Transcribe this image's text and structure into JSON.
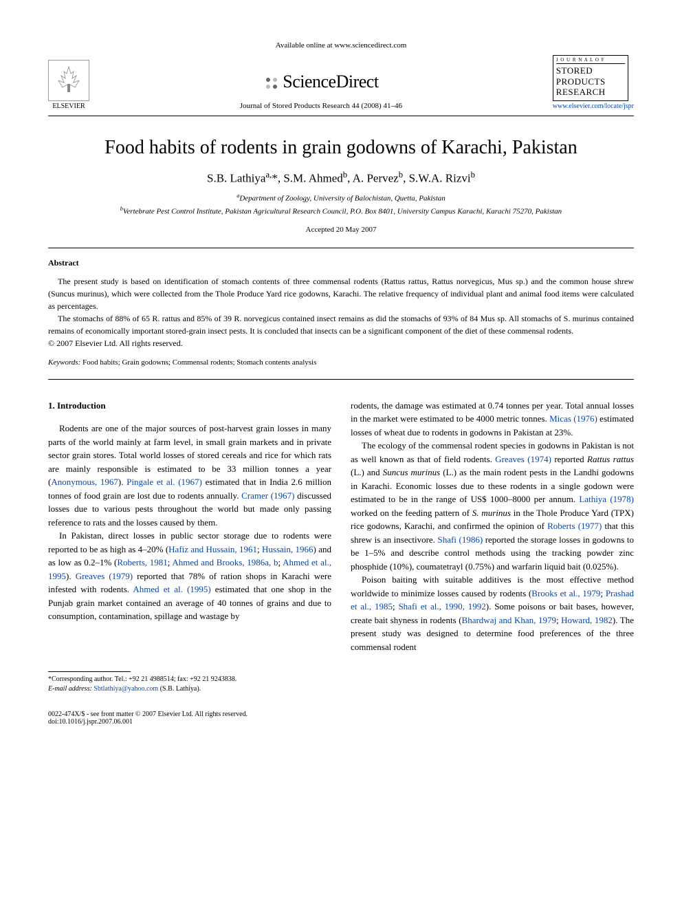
{
  "header": {
    "available_text": "Available online at www.sciencedirect.com",
    "sciencedirect": "ScienceDirect",
    "journal_ref": "Journal of Stored Products Research 44 (2008) 41–46",
    "elsevier_label": "ELSEVIER",
    "journal_cover_label": "J O U R N A L   O F",
    "journal_cover_title": "STORED PRODUCTS RESEARCH",
    "journal_link": "www.elsevier.com/locate/jspr"
  },
  "article": {
    "title": "Food habits of rodents in grain godowns of Karachi, Pakistan",
    "authors_html": "S.B. Lathiya<sup>a,</sup>*, S.M. Ahmed<sup>b</sup>, A. Pervez<sup>b</sup>, S.W.A. Rizvi<sup>b</sup>",
    "affiliation_a": "Department of Zoology, University of Balochistan, Quetta, Pakistan",
    "affiliation_b": "Vertebrate Pest Control Institute, Pakistan Agricultural Research Council, P.O. Box 8401, University Campus Karachi, Karachi 75270, Pakistan",
    "accepted": "Accepted 20 May 2007"
  },
  "abstract": {
    "heading": "Abstract",
    "p1": "The present study is based on identification of stomach contents of three commensal rodents (Rattus rattus, Rattus norvegicus, Mus sp.) and the common house shrew (Suncus murinus), which were collected from the Thole Produce Yard rice godowns, Karachi. The relative frequency of individual plant and animal food items were calculated as percentages.",
    "p2": "The stomachs of 88% of 65 R. rattus and 85% of 39 R. norvegicus contained insect remains as did the stomachs of 93% of 84 Mus sp. All stomachs of S. murinus contained remains of economically important stored-grain insect pests. It is concluded that insects can be a significant component of the diet of these commensal rodents.",
    "copyright": "© 2007 Elsevier Ltd. All rights reserved.",
    "keywords_label": "Keywords:",
    "keywords": "Food habits; Grain godowns; Commensal rodents; Stomach contents analysis"
  },
  "body": {
    "intro_heading": "1. Introduction",
    "col1_p1_a": "Rodents are one of the major sources of post-harvest grain losses in many parts of the world mainly at farm level, in small grain markets and in private sector grain stores. Total world losses of stored cereals and rice for which rats are mainly responsible is estimated to be 33 million tonnes a year (",
    "col1_p1_ref1": "Anonymous, 1967",
    "col1_p1_b": "). ",
    "col1_p1_ref2": "Pingale et al. (1967)",
    "col1_p1_c": " estimated that in India 2.6 million tonnes of food grain are lost due to rodents annually. ",
    "col1_p1_ref3": "Cramer (1967)",
    "col1_p1_d": " discussed losses due to various pests throughout the world but made only passing reference to rats and the losses caused by them.",
    "col1_p2_a": "In Pakistan, direct losses in public sector storage due to rodents were reported to be as high as 4–20% (",
    "col1_p2_ref1": "Hafiz and Hussain, 1961",
    "col1_p2_b": "; ",
    "col1_p2_ref2": "Hussain, 1966",
    "col1_p2_c": ") and as low as 0.2–1% (",
    "col1_p2_ref3": "Roberts, 1981",
    "col1_p2_d": "; ",
    "col1_p2_ref4": "Ahmed and Brooks, 1986a, b",
    "col1_p2_e": "; ",
    "col1_p2_ref5": "Ahmed et al., 1995",
    "col1_p2_f": "). ",
    "col1_p2_ref6": "Greaves (1979)",
    "col1_p2_g": " reported that 78% of ration shops in Karachi were infested with rodents. ",
    "col1_p2_ref7": "Ahmed et al. (1995)",
    "col1_p2_h": " estimated that one shop in the Punjab grain market contained an average of 40 tonnes of grains and due to consumption, contamination, spillage and wastage by",
    "col2_p1_a": "rodents, the damage was estimated at 0.74 tonnes per year. Total annual losses in the market were estimated to be 4000 metric tonnes. ",
    "col2_p1_ref1": "Micas (1976)",
    "col2_p1_b": " estimated losses of wheat due to rodents in godowns in Pakistan at 23%.",
    "col2_p2_a": "The ecology of the commensal rodent species in godowns in Pakistan is not as well known as that of field rodents. ",
    "col2_p2_ref1": "Greaves (1974)",
    "col2_p2_b": " reported ",
    "col2_p2_it1": "Rattus rattus",
    "col2_p2_c": " (L.) and ",
    "col2_p2_it2": "Suncus murinus",
    "col2_p2_d": " (L.) as the main rodent pests in the Landhi godowns in Karachi. Economic losses due to these rodents in a single godown were estimated to be in the range of US$ 1000–8000 per annum. ",
    "col2_p2_ref2": "Lathiya (1978)",
    "col2_p2_e": " worked on the feeding pattern of ",
    "col2_p2_it3": "S. murinus",
    "col2_p2_f": " in the Thole Produce Yard (TPX) rice godowns, Karachi, and confirmed the opinion of ",
    "col2_p2_ref3": "Roberts (1977)",
    "col2_p2_g": " that this shrew is an insectivore. ",
    "col2_p2_ref4": "Shafi (1986)",
    "col2_p2_h": " reported the storage losses in godowns to be 1–5% and describe control methods using the tracking powder zinc phosphide (10%), coumatetrayl (0.75%) and warfarin liquid bait (0.025%).",
    "col2_p3_a": "Poison baiting with suitable additives is the most effective method worldwide to minimize losses caused by rodents (",
    "col2_p3_ref1": "Brooks et al., 1979",
    "col2_p3_b": "; ",
    "col2_p3_ref2": "Prashad et al., 1985",
    "col2_p3_c": "; ",
    "col2_p3_ref3": "Shafi et al., 1990, 1992",
    "col2_p3_d": "). Some poisons or bait bases, however, create bait shyness in rodents (",
    "col2_p3_ref4": "Bhardwaj and Khan, 1979",
    "col2_p3_e": "; ",
    "col2_p3_ref5": "Howard, 1982",
    "col2_p3_f": "). The present study was designed to determine food preferences of the three commensal rodent"
  },
  "footnote": {
    "corresponding": "*Corresponding author. Tel.: +92 21 4988514; fax: +92 21 9243838.",
    "email_label": "E-mail address:",
    "email": "Sbtlathiya@yahoo.com",
    "email_owner": "(S.B. Lathiya)."
  },
  "footer": {
    "left_line1": "0022-474X/$ - see front matter © 2007 Elsevier Ltd. All rights reserved.",
    "left_line2": "doi:10.1016/j.jspr.2007.06.001"
  },
  "colors": {
    "link": "#0645ad",
    "text": "#000000",
    "background": "#ffffff"
  },
  "typography": {
    "title_fontsize_pt": 21,
    "authors_fontsize_pt": 13,
    "body_fontsize_pt": 10,
    "abstract_fontsize_pt": 9,
    "font_family": "Times New Roman / Georgia serif"
  }
}
